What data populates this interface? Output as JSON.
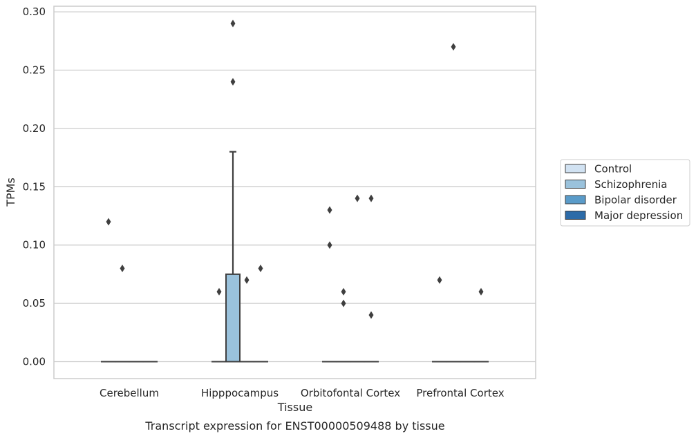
{
  "chart_data": {
    "type": "box",
    "title": "",
    "caption": "Transcript expression for ENST00000509488 by tissue",
    "xlabel": "Tissue",
    "ylabel": "TPMs",
    "ylim": [
      -0.014,
      0.305
    ],
    "yticks": [
      "0.00",
      "0.05",
      "0.10",
      "0.15",
      "0.20",
      "0.25",
      "0.30"
    ],
    "grid": true,
    "legend_position": "right",
    "categories": [
      "Cerebellum",
      "Hipppocampus",
      "Orbitofontal Cortex",
      "Prefrontal Cortex"
    ],
    "series": [
      {
        "name": "Control",
        "color": "#d1e2f2",
        "boxes": [
          {
            "q1": 0,
            "median": 0,
            "q3": 0,
            "whisker_low": 0,
            "whisker_high": 0,
            "outliers": [
              0.12
            ]
          },
          {
            "q1": 0,
            "median": 0,
            "q3": 0,
            "whisker_low": 0,
            "whisker_high": 0,
            "outliers": [
              0.06
            ]
          },
          {
            "q1": 0,
            "median": 0,
            "q3": 0,
            "whisker_low": 0,
            "whisker_high": 0,
            "outliers": [
              0.13,
              0.1
            ]
          },
          {
            "q1": 0,
            "median": 0,
            "q3": 0,
            "whisker_low": 0,
            "whisker_high": 0,
            "outliers": [
              0.07
            ]
          }
        ]
      },
      {
        "name": "Schizophrenia",
        "color": "#9ac2dc",
        "boxes": [
          {
            "q1": 0,
            "median": 0,
            "q3": 0,
            "whisker_low": 0,
            "whisker_high": 0,
            "outliers": [
              0.08
            ]
          },
          {
            "q1": 0,
            "median": 0,
            "q3": 0.075,
            "whisker_low": 0,
            "whisker_high": 0.18,
            "outliers": [
              0.29,
              0.24
            ]
          },
          {
            "q1": 0,
            "median": 0,
            "q3": 0,
            "whisker_low": 0,
            "whisker_high": 0,
            "outliers": [
              0.06,
              0.05
            ]
          },
          {
            "q1": 0,
            "median": 0,
            "q3": 0,
            "whisker_low": 0,
            "whisker_high": 0,
            "outliers": [
              0.27
            ]
          }
        ]
      },
      {
        "name": "Bipolar disorder",
        "color": "#5a9bc9",
        "boxes": [
          {
            "q1": 0,
            "median": 0,
            "q3": 0,
            "whisker_low": 0,
            "whisker_high": 0,
            "outliers": []
          },
          {
            "q1": 0,
            "median": 0,
            "q3": 0,
            "whisker_low": 0,
            "whisker_high": 0,
            "outliers": [
              0.07
            ]
          },
          {
            "q1": 0,
            "median": 0,
            "q3": 0,
            "whisker_low": 0,
            "whisker_high": 0,
            "outliers": [
              0.14
            ]
          },
          {
            "q1": 0,
            "median": 0,
            "q3": 0,
            "whisker_low": 0,
            "whisker_high": 0,
            "outliers": []
          }
        ]
      },
      {
        "name": "Major depression",
        "color": "#2c6ba8",
        "boxes": [
          {
            "q1": 0,
            "median": 0,
            "q3": 0,
            "whisker_low": 0,
            "whisker_high": 0,
            "outliers": []
          },
          {
            "q1": 0,
            "median": 0,
            "q3": 0,
            "whisker_low": 0,
            "whisker_high": 0,
            "outliers": [
              0.08
            ]
          },
          {
            "q1": 0,
            "median": 0,
            "q3": 0,
            "whisker_low": 0,
            "whisker_high": 0,
            "outliers": [
              0.14,
              0.04
            ]
          },
          {
            "q1": 0,
            "median": 0,
            "q3": 0,
            "whisker_low": 0,
            "whisker_high": 0,
            "outliers": [
              0.06
            ]
          }
        ]
      }
    ],
    "colors": {
      "axis": "#cccccc",
      "grid": "#cccccc",
      "stroke": "#3f3f3f"
    }
  }
}
